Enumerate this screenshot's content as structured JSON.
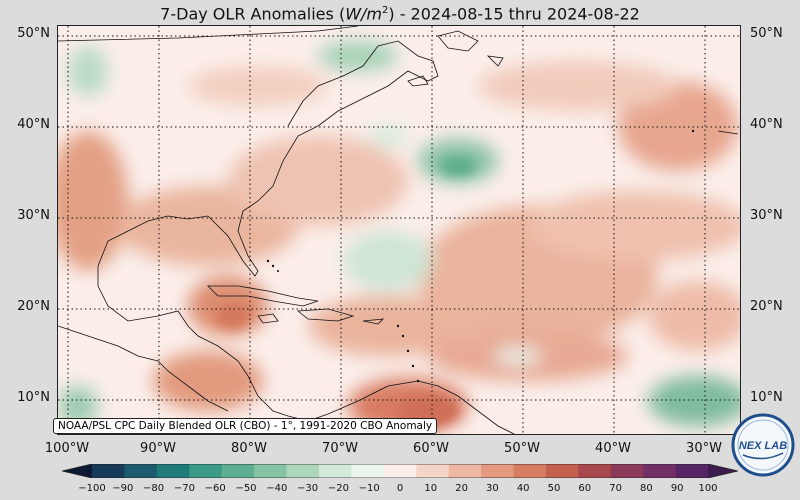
{
  "title_prefix": "7-Day OLR Anomalies (",
  "title_unit": "W/m",
  "title_unit_exp": "2",
  "title_suffix": ") - 2024-08-15 thru 2024-08-22",
  "lat_labels": [
    "50°N",
    "40°N",
    "30°N",
    "20°N",
    "10°N"
  ],
  "lon_labels": [
    "100°W",
    "90°W",
    "80°W",
    "70°W",
    "60°W",
    "50°W",
    "40°W",
    "30°W"
  ],
  "source_note": "NOAA/PSL CPC Daily Blended OLR (CBO) - 1°, 1991-2020 CBO Anomaly",
  "colorbar_ticks": [
    "−100",
    "−90",
    "−80",
    "−70",
    "−60",
    "−50",
    "−40",
    "−30",
    "−20",
    "−10",
    "0",
    "10",
    "20",
    "30",
    "40",
    "50",
    "60",
    "70",
    "80",
    "90",
    "100"
  ],
  "colorbar_colors": [
    "#0e1a33",
    "#173a5a",
    "#1c5a6e",
    "#1f7a7a",
    "#3a9a86",
    "#5fae92",
    "#86c2a4",
    "#aed6bd",
    "#d2e8d8",
    "#ecf4ee",
    "#fbeeea",
    "#f6d5c9",
    "#eeb8a4",
    "#e39a80",
    "#d67c62",
    "#c3604e",
    "#a8484c",
    "#8c3a5a",
    "#722f66",
    "#562563",
    "#3c1c4e"
  ],
  "logo_text": "NEX LAB",
  "map_extent": {
    "lon": [
      -101,
      -26
    ],
    "lat": [
      5,
      51
    ]
  }
}
